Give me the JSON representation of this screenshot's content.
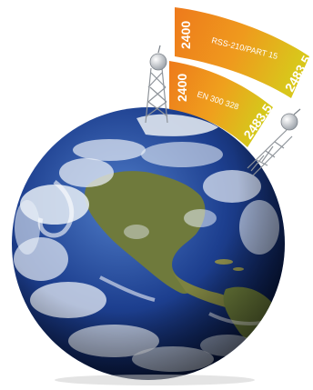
{
  "bands": [
    {
      "standard": "RSS-210/PART 15",
      "start": "2400",
      "end": "2483.5"
    },
    {
      "standard": "EN 300 328",
      "start": "2400",
      "end": "2483.5"
    }
  ],
  "colors": {
    "band_start": "#f0871a",
    "band_end": "#d8c41a",
    "ocean": "#1d3f8f",
    "cloud": "#e8eef6",
    "land": "#6f7a3c"
  }
}
